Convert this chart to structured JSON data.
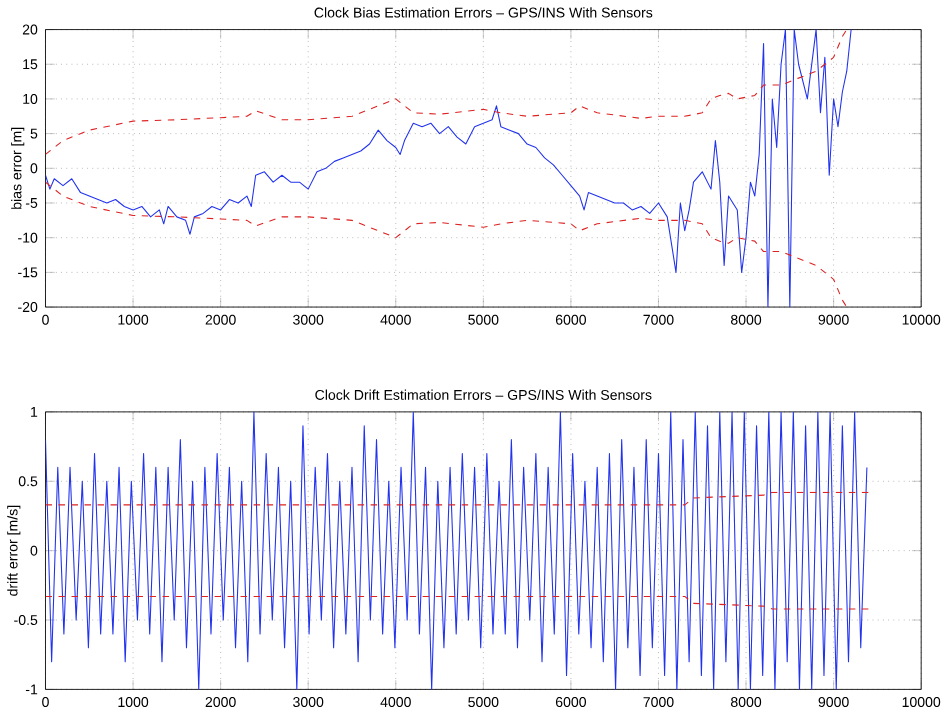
{
  "chart_data": [
    {
      "type": "line",
      "title": "Clock Bias Estimation Errors – GPS/INS With Sensors",
      "ylabel": "bias error [m]",
      "xlim": [
        0,
        10000
      ],
      "ylim": [
        -20,
        20
      ],
      "xticks": [
        0,
        1000,
        2000,
        3000,
        4000,
        5000,
        6000,
        7000,
        8000,
        9000,
        10000
      ],
      "yticks": [
        -20,
        -15,
        -10,
        -5,
        0,
        5,
        10,
        15,
        20
      ],
      "grid": true,
      "series": [
        {
          "color": "#2233ee",
          "line_style": "solid",
          "x": [
            0,
            50,
            100,
            200,
            300,
            400,
            500,
            600,
            700,
            800,
            900,
            1000,
            1100,
            1200,
            1300,
            1350,
            1400,
            1500,
            1600,
            1650,
            1700,
            1800,
            1900,
            2000,
            2100,
            2200,
            2300,
            2350,
            2400,
            2500,
            2600,
            2700,
            2800,
            2900,
            3000,
            3100,
            3200,
            3300,
            3400,
            3500,
            3600,
            3700,
            3800,
            3900,
            4000,
            4050,
            4100,
            4200,
            4300,
            4400,
            4500,
            4600,
            4700,
            4800,
            4900,
            5000,
            5100,
            5150,
            5200,
            5300,
            5400,
            5500,
            5600,
            5700,
            5800,
            5900,
            6000,
            6100,
            6150,
            6200,
            6300,
            6400,
            6500,
            6600,
            6700,
            6800,
            6900,
            7000,
            7100,
            7200,
            7250,
            7300,
            7350,
            7400,
            7500,
            7600,
            7650,
            7700,
            7750,
            7800,
            7900,
            7950,
            8000,
            8050,
            8100,
            8150,
            8200,
            8250,
            8300,
            8350,
            8400,
            8450,
            8500,
            8550,
            8600,
            8700,
            8800,
            8850,
            8900,
            8950,
            9000,
            9050,
            9100,
            9150,
            9200
          ],
          "values": [
            -1,
            -3,
            -1.5,
            -2.5,
            -1.5,
            -3.5,
            -4,
            -4.5,
            -5,
            -4.5,
            -5.5,
            -6,
            -5.5,
            -7,
            -6,
            -8,
            -5.5,
            -7,
            -7.5,
            -9.5,
            -7,
            -6.5,
            -5.5,
            -6,
            -4.5,
            -5,
            -4,
            -5.5,
            -1,
            -0.5,
            -2,
            -1,
            -2,
            -2,
            -3,
            -0.5,
            0,
            1,
            1.5,
            2,
            2.5,
            3.5,
            5.5,
            4,
            3,
            2,
            4,
            6.5,
            6,
            6.5,
            5,
            6,
            4.5,
            3.5,
            6,
            6.5,
            7,
            9,
            6,
            5.5,
            5,
            3.5,
            3,
            1.5,
            0.5,
            -1,
            -2.5,
            -4,
            -6,
            -3.5,
            -4,
            -4.5,
            -5,
            -5,
            -6,
            -5.5,
            -6.5,
            -5,
            -7,
            -15,
            -5,
            -9,
            -6,
            -2,
            -0.5,
            -3,
            4,
            -2,
            -14,
            -4,
            -6,
            -15,
            -10,
            -2,
            -4,
            2,
            18,
            -20,
            10,
            3,
            15,
            20,
            -20,
            20,
            15,
            10,
            20,
            8,
            16,
            -1,
            10,
            6,
            11,
            14,
            20
          ]
        },
        {
          "color": "#dd2222",
          "line_style": "dashed",
          "x": [
            0,
            200,
            500,
            1000,
            1500,
            2000,
            2300,
            2400,
            2700,
            3000,
            3500,
            4000,
            4200,
            4500,
            5000,
            5200,
            5500,
            6000,
            6100,
            6300,
            6800,
            7000,
            7300,
            7500,
            7600,
            7700,
            7800,
            7900,
            8100,
            8200,
            8400,
            8600,
            8800,
            9000,
            9100,
            9150
          ],
          "values": [
            2,
            4,
            5.5,
            6.8,
            7,
            7.3,
            7.5,
            8.3,
            7,
            7,
            7.5,
            10,
            8,
            7.8,
            8.5,
            8,
            7.5,
            8,
            9,
            8,
            7.2,
            7.5,
            7.5,
            8,
            10,
            10.5,
            10.8,
            10,
            10.5,
            12,
            12,
            13,
            14,
            16,
            19,
            20
          ]
        },
        {
          "color": "#dd2222",
          "line_style": "dashed",
          "x": [
            0,
            200,
            500,
            1000,
            1500,
            2000,
            2300,
            2400,
            2700,
            3000,
            3500,
            4000,
            4200,
            4500,
            5000,
            5200,
            5500,
            6000,
            6100,
            6300,
            6800,
            7000,
            7300,
            7500,
            7600,
            7700,
            7800,
            7900,
            8100,
            8200,
            8400,
            8600,
            8800,
            9000,
            9100,
            9150
          ],
          "values": [
            -2,
            -4,
            -5.5,
            -6.8,
            -7,
            -7.3,
            -7.5,
            -8.3,
            -7,
            -7,
            -7.5,
            -10,
            -8,
            -7.8,
            -8.5,
            -8,
            -7.5,
            -8,
            -9,
            -8,
            -7.2,
            -7.5,
            -7.5,
            -8,
            -10,
            -10.5,
            -10.8,
            -10,
            -10.5,
            -12,
            -12,
            -13,
            -14,
            -16,
            -19,
            -20
          ]
        }
      ]
    },
    {
      "type": "line",
      "title": "Clock Drift Estimation Errors – GPS/INS With Sensors",
      "ylabel": "drift error [m/s]",
      "xlim": [
        0,
        10000
      ],
      "ylim": [
        -1,
        1
      ],
      "xticks": [
        0,
        1000,
        2000,
        3000,
        4000,
        5000,
        6000,
        7000,
        8000,
        9000,
        10000
      ],
      "yticks": [
        -1,
        -0.5,
        0,
        0.5,
        1
      ],
      "grid": true,
      "series": [
        {
          "color": "#2233ee",
          "line_style": "solid",
          "x": [
            0,
            70,
            140,
            210,
            280,
            350,
            420,
            490,
            560,
            630,
            700,
            770,
            840,
            910,
            980,
            1050,
            1120,
            1190,
            1260,
            1330,
            1400,
            1470,
            1540,
            1610,
            1680,
            1750,
            1820,
            1890,
            1960,
            2030,
            2100,
            2170,
            2240,
            2310,
            2380,
            2450,
            2520,
            2590,
            2660,
            2730,
            2800,
            2870,
            2940,
            3010,
            3080,
            3150,
            3220,
            3290,
            3360,
            3430,
            3500,
            3570,
            3640,
            3710,
            3780,
            3850,
            3920,
            3990,
            4060,
            4130,
            4200,
            4270,
            4340,
            4410,
            4480,
            4550,
            4620,
            4690,
            4760,
            4830,
            4900,
            4970,
            5040,
            5110,
            5180,
            5250,
            5320,
            5390,
            5460,
            5530,
            5600,
            5670,
            5740,
            5810,
            5880,
            5950,
            6020,
            6090,
            6160,
            6230,
            6300,
            6370,
            6440,
            6510,
            6580,
            6650,
            6720,
            6790,
            6860,
            6930,
            7000,
            7070,
            7140,
            7210,
            7280,
            7350,
            7420,
            7490,
            7560,
            7630,
            7700,
            7770,
            7840,
            7910,
            7980,
            8050,
            8120,
            8190,
            8260,
            8330,
            8400,
            8470,
            8540,
            8610,
            8680,
            8750,
            8820,
            8890,
            8960,
            9030,
            9100,
            9170,
            9240,
            9310,
            9380
          ],
          "values": [
            0.8,
            -0.8,
            0.6,
            -0.6,
            0.6,
            -0.5,
            0.5,
            -0.7,
            0.7,
            -0.6,
            0.5,
            -0.6,
            0.6,
            -0.8,
            0.5,
            -0.5,
            0.7,
            -0.6,
            0.6,
            -0.8,
            0.6,
            -0.5,
            0.8,
            -0.7,
            0.5,
            -1,
            0.6,
            -0.6,
            0.7,
            -0.5,
            0.6,
            -0.7,
            0.5,
            -0.8,
            1,
            -0.6,
            0.7,
            -0.5,
            0.6,
            -0.7,
            0.5,
            -1,
            0.9,
            -0.6,
            0.6,
            -0.5,
            0.7,
            -0.7,
            0.5,
            -0.6,
            0.6,
            -0.8,
            0.9,
            -0.5,
            0.8,
            -0.6,
            0.5,
            -0.7,
            0.6,
            -0.5,
            1,
            -0.6,
            0.6,
            -1,
            0.5,
            -0.7,
            0.6,
            -0.6,
            0.7,
            -0.5,
            0.6,
            -0.7,
            0.7,
            -0.6,
            0.5,
            -0.6,
            0.8,
            -0.7,
            0.6,
            -0.5,
            0.7,
            -0.8,
            0.6,
            -0.6,
            1,
            -0.9,
            0.7,
            -0.6,
            0.5,
            -0.7,
            0.6,
            -0.8,
            0.7,
            -1,
            0.8,
            -0.7,
            0.6,
            -0.9,
            0.8,
            -0.7,
            0.7,
            -0.9,
            1,
            -1,
            0.8,
            -0.8,
            1,
            -0.9,
            0.9,
            -1,
            1,
            -0.8,
            1,
            -1,
            1,
            -1,
            0.9,
            -0.9,
            1,
            -1,
            1,
            -0.8,
            1,
            -1,
            0.9,
            -1,
            1,
            -0.9,
            1,
            -1,
            0.9,
            -0.8,
            1,
            -0.7,
            0.6
          ]
        },
        {
          "color": "#dd2222",
          "line_style": "dashed",
          "x": [
            0,
            7300,
            7400,
            8200,
            8300,
            9400
          ],
          "values": [
            0.33,
            0.33,
            0.38,
            0.4,
            0.42,
            0.42
          ]
        },
        {
          "color": "#dd2222",
          "line_style": "dashed",
          "x": [
            0,
            7300,
            7400,
            8200,
            8300,
            9400
          ],
          "values": [
            -0.33,
            -0.33,
            -0.38,
            -0.4,
            -0.42,
            -0.42
          ]
        }
      ]
    }
  ]
}
